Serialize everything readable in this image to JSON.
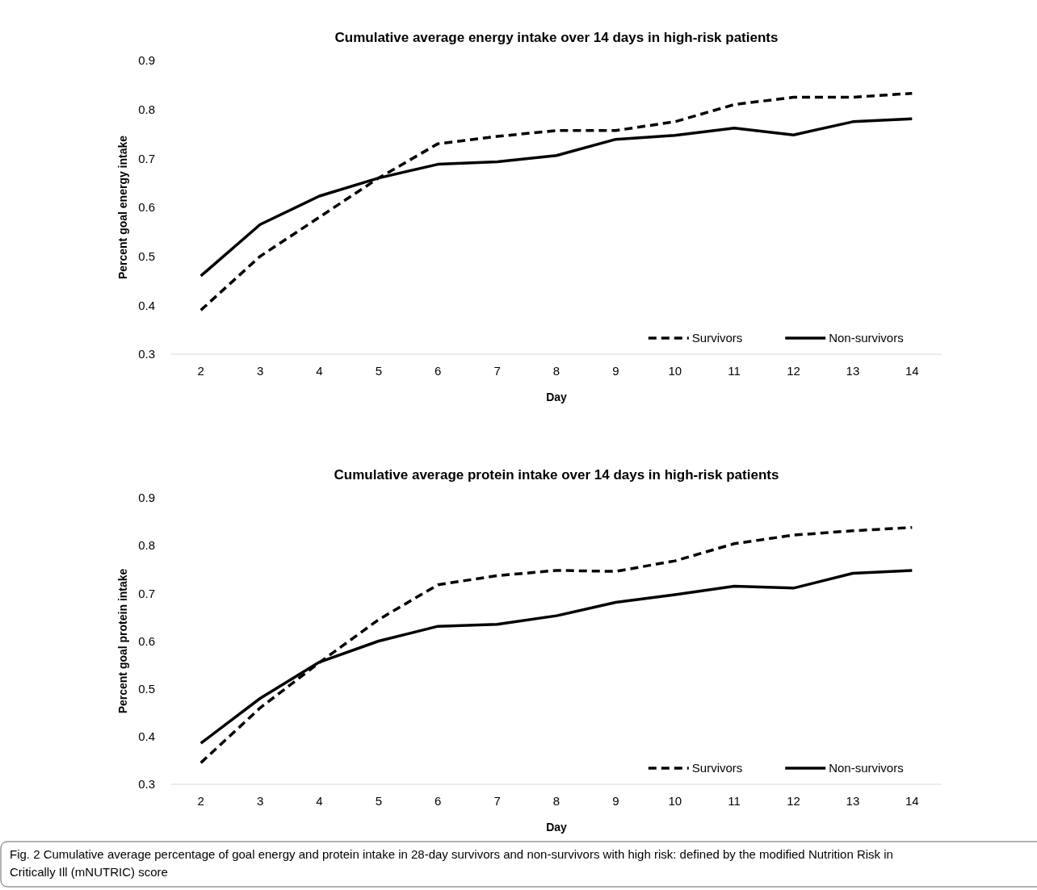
{
  "chart_data": [
    {
      "type": "line",
      "title": "Cumulative average energy intake over 14 days in high-risk patients",
      "xlabel": "Day",
      "ylabel": "Percent goal energy intake",
      "categories": [
        "2",
        "3",
        "4",
        "5",
        "6",
        "7",
        "8",
        "9",
        "10",
        "11",
        "12",
        "13",
        "14"
      ],
      "ylim": [
        0.3,
        0.9
      ],
      "yticks": [
        0.3,
        0.4,
        0.5,
        0.6,
        0.7,
        0.8,
        0.9
      ],
      "legend": "bottom right",
      "marker": "none",
      "series": [
        {
          "name": "Survivors",
          "color": "#000000",
          "line_style": "dashed",
          "values": [
            0.39,
            0.5,
            0.58,
            0.66,
            0.73,
            0.745,
            0.757,
            0.757,
            0.775,
            0.81,
            0.825,
            0.825,
            0.833
          ]
        },
        {
          "name": "Non-survivors",
          "color": "#000000",
          "line_style": "solid",
          "values": [
            0.46,
            0.565,
            0.623,
            0.66,
            0.688,
            0.693,
            0.706,
            0.739,
            0.747,
            0.762,
            0.748,
            0.775,
            0.781
          ]
        }
      ]
    },
    {
      "type": "line",
      "title": "Cumulative average protein intake over 14 days in high-risk patients",
      "xlabel": "Day",
      "ylabel": "Percent goal protein intake",
      "categories": [
        "2",
        "3",
        "4",
        "5",
        "6",
        "7",
        "8",
        "9",
        "10",
        "11",
        "12",
        "13",
        "14"
      ],
      "ylim": [
        0.3,
        0.9
      ],
      "yticks": [
        0.3,
        0.4,
        0.5,
        0.6,
        0.7,
        0.8,
        0.9
      ],
      "legend": "bottom right",
      "marker": "none",
      "annotations": [
        "Fig. 2  Cumulative average percentage of goal energy and protein intake in 28-day survivors and non-survivors with high risk: defined by the modified Nutrition Risk in Critically Ill (mNUTRIC) score"
      ],
      "series": [
        {
          "name": "Survivors",
          "color": "#000000",
          "line_style": "dashed",
          "values": [
            0.345,
            0.46,
            0.555,
            0.645,
            0.718,
            0.737,
            0.748,
            0.746,
            0.768,
            0.804,
            0.822,
            0.831,
            0.838
          ]
        },
        {
          "name": "Non-survivors",
          "color": "#000000",
          "line_style": "solid",
          "values": [
            0.386,
            0.48,
            0.556,
            0.6,
            0.631,
            0.635,
            0.653,
            0.681,
            0.697,
            0.715,
            0.711,
            0.742,
            0.748
          ]
        }
      ]
    }
  ]
}
